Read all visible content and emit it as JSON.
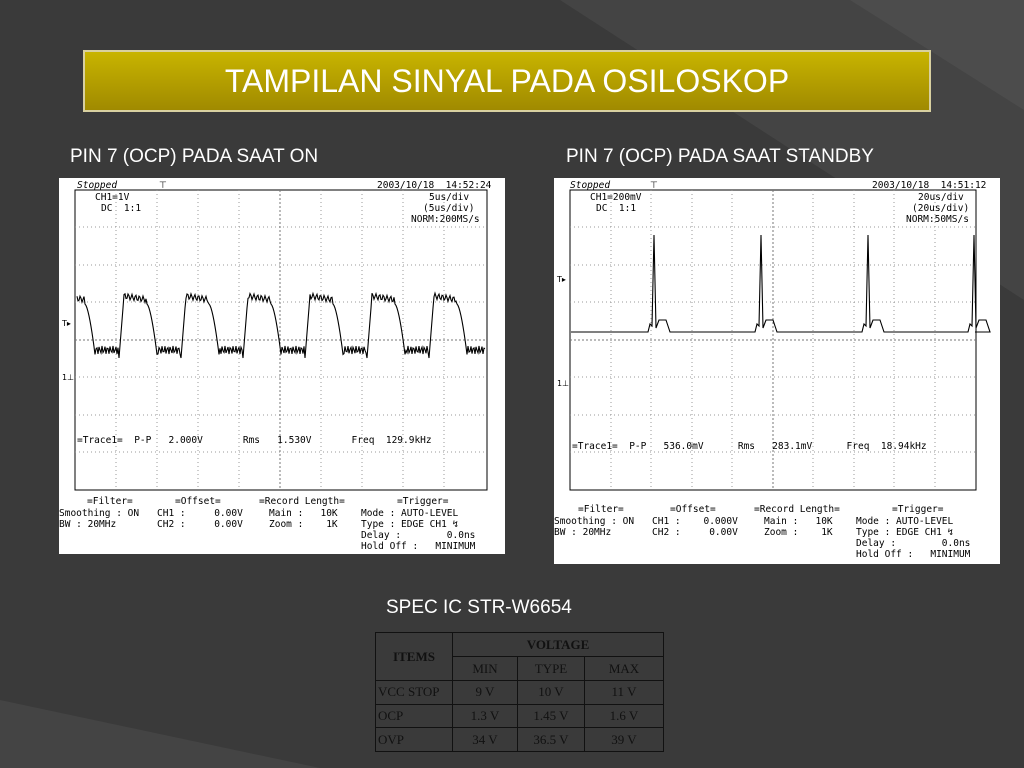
{
  "slide": {
    "title": "TAMPILAN SINYAL PADA OSILOSKOP",
    "left_caption": "PIN 7 (OCP) PADA SAAT ON",
    "right_caption": "PIN 7 (OCP) PADA SAAT STANDBY",
    "spec_caption": "SPEC IC STR-W6654"
  },
  "scopes": {
    "on": {
      "status": "Stopped",
      "datetime": "2003/10/18  14:52:24",
      "ch1": "CH1=1V",
      "coupling": "DC  1:1",
      "timebase": "5us/div",
      "timebase2": "(5us/div)",
      "sample": "NORM:200MS/s",
      "trace_line": "=Trace1=  P-P   2.000V       Rms   1.530V       Freq  129.9kHz",
      "filter_head": "=Filter=",
      "filter1": "Smoothing : ON",
      "filter2": "BW : 20MHz",
      "offset_head": "=Offset=",
      "offset1": "CH1 :     0.00V",
      "offset2": "CH2 :     0.00V",
      "record_head": "=Record Length=",
      "record1": "Main :   10K",
      "record2": "Zoom :    1K",
      "trigger_head": "=Trigger=",
      "trigger1": "Mode : AUTO-LEVEL",
      "trigger2": "Type : EDGE CH1 ↯",
      "trigger3": "Delay :        0.0ns",
      "trigger4": "Hold Off :   MINIMUM"
    },
    "standby": {
      "status": "Stopped",
      "datetime": "2003/10/18  14:51:12",
      "ch1": "CH1=200mV",
      "coupling": "DC  1:1",
      "timebase": "20us/div",
      "timebase2": "(20us/div)",
      "sample": "NORM:50MS/s",
      "trace_line": "=Trace1=  P-P   536.0mV      Rms   283.1mV      Freq  18.94kHz",
      "filter_head": "=Filter=",
      "filter1": "Smoothing : ON",
      "filter2": "BW : 20MHz",
      "offset_head": "=Offset=",
      "offset1": "CH1 :    0.000V",
      "offset2": "CH2 :     0.00V",
      "record_head": "=Record Length=",
      "record1": "Main :   10K",
      "record2": "Zoom :    1K",
      "trigger_head": "=Trigger=",
      "trigger1": "Mode : AUTO-LEVEL",
      "trigger2": "Type : EDGE CH1 ↯",
      "trigger3": "Delay :        0.0ns",
      "trigger4": "Hold Off :   MINIMUM"
    }
  },
  "spec_table": {
    "items_label": "ITEMS",
    "voltage_label": "VOLTAGE",
    "col_min": "MIN",
    "col_type": "TYPE",
    "col_max": "MAX",
    "rows": [
      {
        "item": "VCC STOP",
        "min": "9 V",
        "type": "10 V",
        "max": "11 V"
      },
      {
        "item": "OCP",
        "min": "1.3 V",
        "type": "1.45 V",
        "max": "1.6 V"
      },
      {
        "item": "OVP",
        "min": "34 V",
        "type": "36.5 V",
        "max": "39 V"
      }
    ]
  },
  "colors": {
    "background": "#3a3a3a",
    "title_gold": "#b8a000"
  }
}
